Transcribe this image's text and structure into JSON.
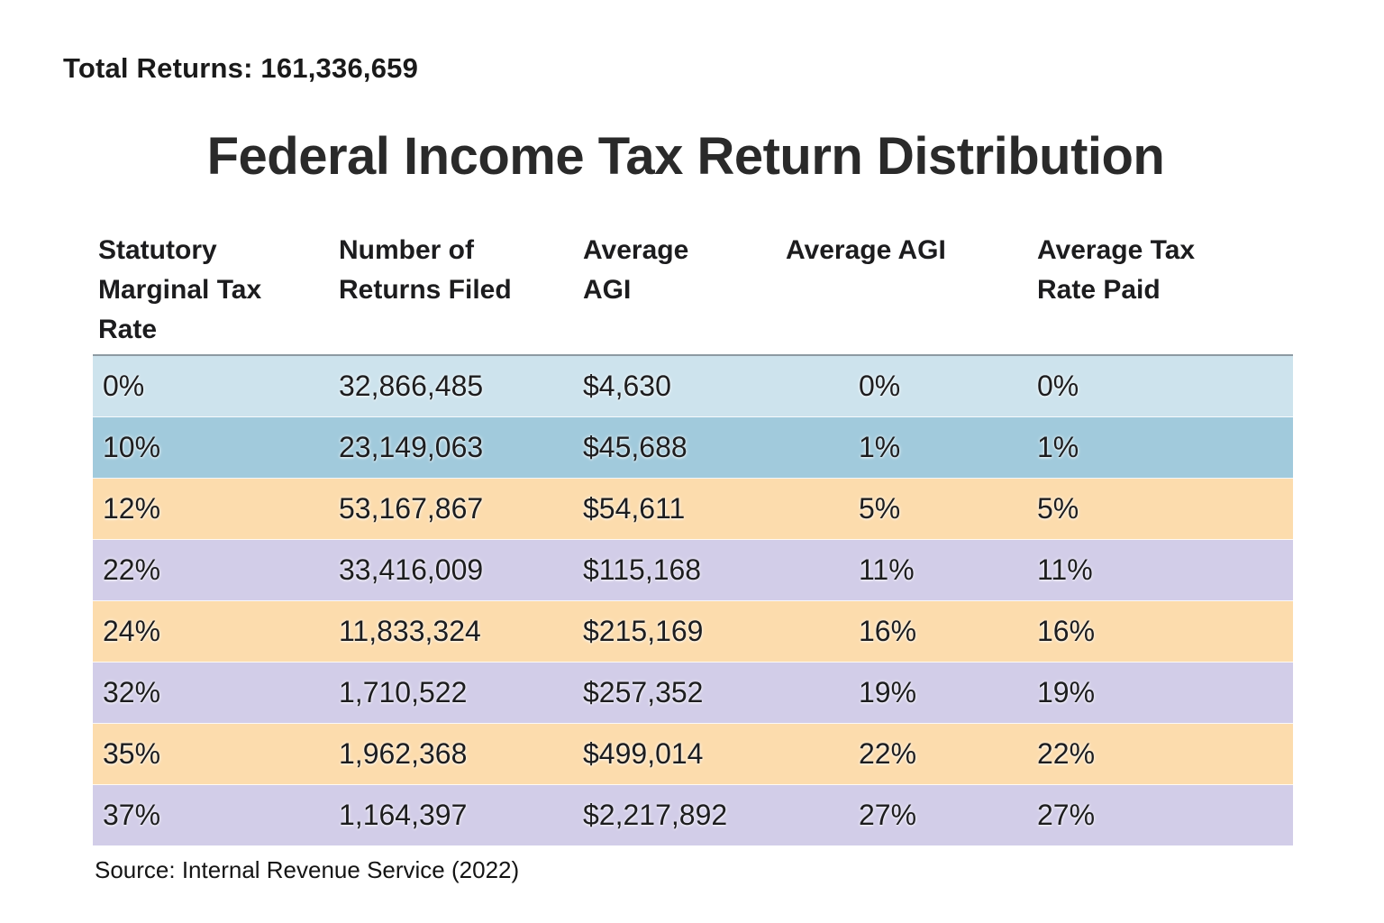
{
  "page": {
    "total_returns_label": "Total Returns: 161,336,659",
    "title": "Federal Income Tax Return Distribution",
    "source": "Source: Internal Revenue Service (2022)"
  },
  "colors": {
    "row_light_blue": "#cde3ed",
    "row_medium_blue": "#a1cadc",
    "row_peach": "#fcdcad",
    "row_lavender": "#d2cde8",
    "table_top_border": "#8d9aa2",
    "text": "#1d1d1f"
  },
  "table": {
    "columns": [
      {
        "label": "Statutory\nMarginal Tax\nRate"
      },
      {
        "label": "Number of\nReturns Filed"
      },
      {
        "label": "Average\nAGI"
      },
      {
        "label": "Average AGI"
      },
      {
        "label": "Average Tax\nRate Paid"
      }
    ],
    "rows": [
      {
        "rate": "0%",
        "returns": "32,866,485",
        "avg_agi": "$4,630",
        "avg_agi_pct": "0%",
        "avg_tax_rate": "0%",
        "color": "#cde3ed"
      },
      {
        "rate": "10%",
        "returns": "23,149,063",
        "avg_agi": "$45,688",
        "avg_agi_pct": "1%",
        "avg_tax_rate": "1%",
        "color": "#a1cadc"
      },
      {
        "rate": "12%",
        "returns": "53,167,867",
        "avg_agi": "$54,611",
        "avg_agi_pct": "5%",
        "avg_tax_rate": "5%",
        "color": "#fcdcad"
      },
      {
        "rate": "22%",
        "returns": "33,416,009",
        "avg_agi": "$115,168",
        "avg_agi_pct": "11%",
        "avg_tax_rate": "11%",
        "color": "#d2cde8"
      },
      {
        "rate": "24%",
        "returns": "11,833,324",
        "avg_agi": "$215,169",
        "avg_agi_pct": "16%",
        "avg_tax_rate": "16%",
        "color": "#fcdcad"
      },
      {
        "rate": "32%",
        "returns": "1,710,522",
        "avg_agi": "$257,352",
        "avg_agi_pct": "19%",
        "avg_tax_rate": "19%",
        "color": "#d2cde8"
      },
      {
        "rate": "35%",
        "returns": "1,962,368",
        "avg_agi": "$499,014",
        "avg_agi_pct": "22%",
        "avg_tax_rate": "22%",
        "color": "#fcdcad"
      },
      {
        "rate": "37%",
        "returns": "1,164,397",
        "avg_agi": "$2,217,892",
        "avg_agi_pct": "27%",
        "avg_tax_rate": "27%",
        "color": "#d2cde8"
      }
    ]
  },
  "chart_data": {
    "type": "table",
    "title": "Federal Income Tax Return Distribution",
    "annotations": [
      "Total Returns: 161,336,659",
      "Source: Internal Revenue Service (2022)"
    ],
    "columns": [
      "Statutory Marginal Tax Rate",
      "Number of Returns Filed",
      "Average AGI",
      "Average AGI",
      "Average Tax Rate Paid"
    ],
    "rows": [
      [
        "0%",
        32866485,
        4630,
        "0%",
        "0%"
      ],
      [
        "10%",
        23149063,
        45688,
        "1%",
        "1%"
      ],
      [
        "12%",
        53167867,
        54611,
        "5%",
        "5%"
      ],
      [
        "22%",
        33416009,
        115168,
        "11%",
        "11%"
      ],
      [
        "24%",
        11833324,
        215169,
        "16%",
        "16%"
      ],
      [
        "32%",
        1710522,
        257352,
        "19%",
        "19%"
      ],
      [
        "35%",
        1962368,
        499014,
        "22%",
        "22%"
      ],
      [
        "37%",
        1164397,
        2217892,
        "27%",
        "27%"
      ]
    ],
    "total_returns": 161336659,
    "row_colors": [
      "#cde3ed",
      "#a1cadc",
      "#fcdcad",
      "#d2cde8",
      "#fcdcad",
      "#d2cde8",
      "#fcdcad",
      "#d2cde8"
    ]
  }
}
